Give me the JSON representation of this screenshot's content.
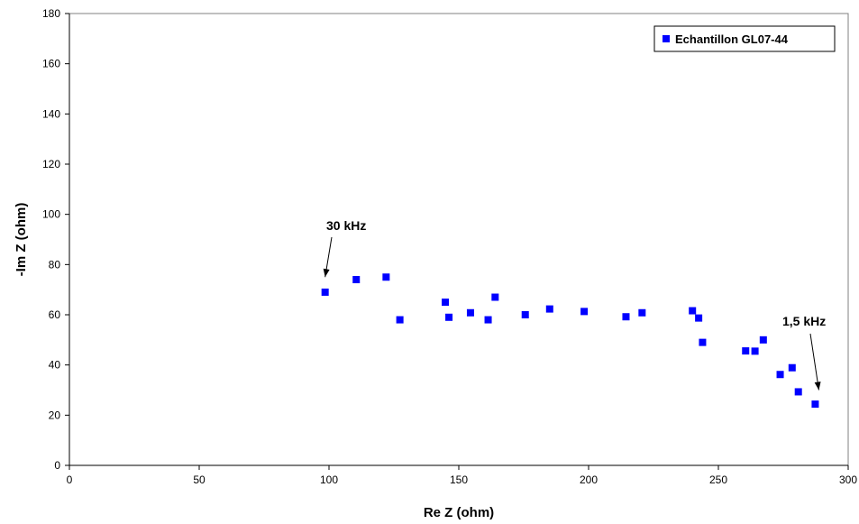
{
  "chart_data": {
    "type": "scatter",
    "xlabel": "Re Z (ohm)",
    "ylabel": "-Im Z (ohm)",
    "xlim": [
      0,
      300
    ],
    "ylim": [
      0,
      180
    ],
    "x_ticks": [
      0,
      50,
      100,
      150,
      200,
      250,
      300
    ],
    "y_ticks": [
      0,
      20,
      40,
      60,
      80,
      100,
      120,
      140,
      160,
      180
    ],
    "grid": false,
    "legend": "top-right",
    "series": [
      {
        "name": "Echantillon GL07-44",
        "color": "#0000ff",
        "marker": "square",
        "points": [
          [
            98.5,
            69
          ],
          [
            110.5,
            74
          ],
          [
            122,
            75
          ],
          [
            127.3,
            58
          ],
          [
            144.8,
            65
          ],
          [
            146.2,
            59
          ],
          [
            154.5,
            60.8
          ],
          [
            161.3,
            58
          ],
          [
            164,
            67
          ],
          [
            175.6,
            60
          ],
          [
            185,
            62.3
          ],
          [
            198.3,
            61.3
          ],
          [
            214.4,
            59.2
          ],
          [
            220.6,
            60.8
          ],
          [
            240,
            61.6
          ],
          [
            242.4,
            58.7
          ],
          [
            243.9,
            49
          ],
          [
            260.5,
            45.6
          ],
          [
            264.1,
            45.5
          ],
          [
            267.3,
            50
          ],
          [
            273.8,
            36.2
          ],
          [
            278.4,
            38.9
          ],
          [
            280.8,
            29.3
          ],
          [
            287.3,
            24.4
          ]
        ]
      }
    ],
    "annotations": [
      {
        "text": "30 kHz",
        "arrow_to": [
          98.5,
          75
        ]
      },
      {
        "text": "1,5 kHz",
        "arrow_to": [
          288.7,
          30
        ]
      }
    ]
  }
}
